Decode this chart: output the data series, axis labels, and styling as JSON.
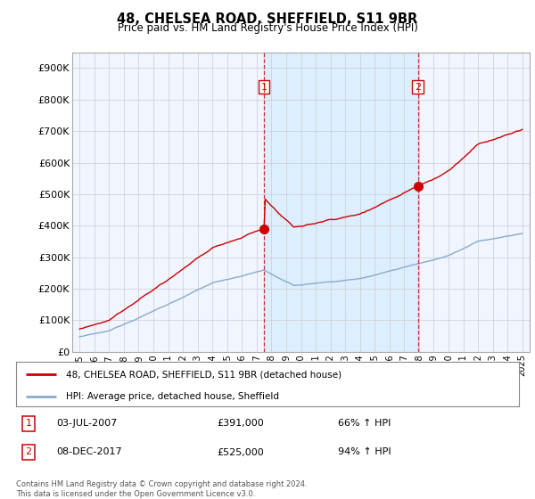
{
  "title": "48, CHELSEA ROAD, SHEFFIELD, S11 9BR",
  "subtitle": "Price paid vs. HM Land Registry's House Price Index (HPI)",
  "yticks": [
    0,
    100000,
    200000,
    300000,
    400000,
    500000,
    600000,
    700000,
    800000,
    900000
  ],
  "ytick_labels": [
    "£0",
    "£100K",
    "£200K",
    "£300K",
    "£400K",
    "£500K",
    "£600K",
    "£700K",
    "£800K",
    "£900K"
  ],
  "line1_color": "#cc0000",
  "line2_color": "#88aacc",
  "line1_label": "48, CHELSEA ROAD, SHEFFIELD, S11 9BR (detached house)",
  "line2_label": "HPI: Average price, detached house, Sheffield",
  "t1_year_float": 2007.504,
  "t1_price": 391000,
  "t2_year_float": 2017.936,
  "t2_price": 525000,
  "highlight_color": "#ddeeff",
  "background_color": "#f0f5ff",
  "grid_color": "#cccccc",
  "footer": "Contains HM Land Registry data © Crown copyright and database right 2024.\nThis data is licensed under the Open Government Licence v3.0."
}
